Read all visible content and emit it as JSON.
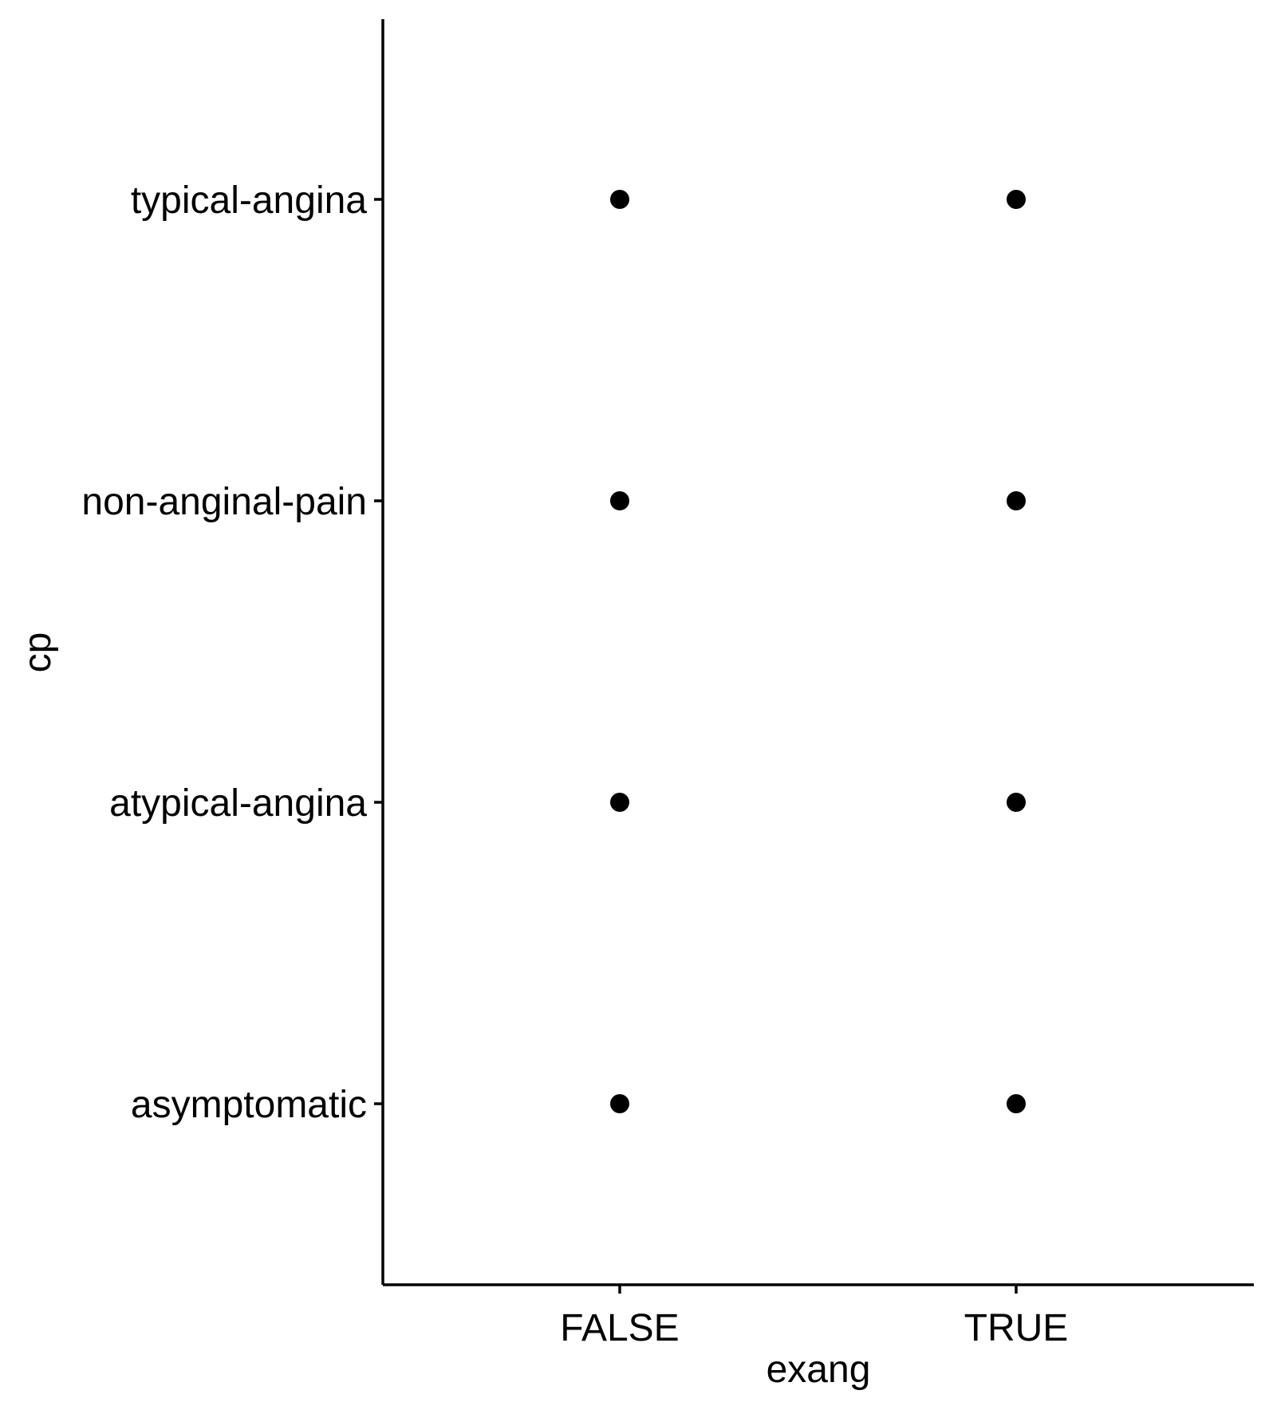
{
  "chart_data": {
    "type": "scatter",
    "title": "",
    "xlabel": "exang",
    "ylabel": "cp",
    "x_categories": [
      "FALSE",
      "TRUE"
    ],
    "y_categories": [
      "asymptomatic",
      "atypical-angina",
      "non-anginal-pain",
      "typical-angina"
    ],
    "points": [
      {
        "x": "FALSE",
        "y": "typical-angina"
      },
      {
        "x": "TRUE",
        "y": "typical-angina"
      },
      {
        "x": "FALSE",
        "y": "non-anginal-pain"
      },
      {
        "x": "TRUE",
        "y": "non-anginal-pain"
      },
      {
        "x": "FALSE",
        "y": "atypical-angina"
      },
      {
        "x": "TRUE",
        "y": "atypical-angina"
      },
      {
        "x": "FALSE",
        "y": "asymptomatic"
      },
      {
        "x": "TRUE",
        "y": "asymptomatic"
      }
    ],
    "grid": false,
    "legend": "none",
    "point_color": "#000000",
    "axis_color": "#000000"
  }
}
